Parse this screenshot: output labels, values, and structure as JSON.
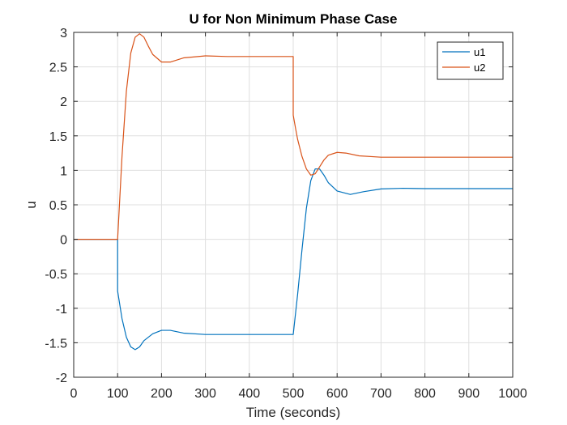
{
  "chart_data": {
    "type": "line",
    "title": "U for Non Minimum Phase Case",
    "xlabel": "Time (seconds)",
    "ylabel": "u",
    "xlim": [
      0,
      1000
    ],
    "ylim": [
      -2,
      3
    ],
    "xticks": [
      0,
      100,
      200,
      300,
      400,
      500,
      600,
      700,
      800,
      900,
      1000
    ],
    "yticks": [
      -2,
      -1.5,
      -1,
      -0.5,
      0,
      0.5,
      1,
      1.5,
      2,
      2.5,
      3
    ],
    "xtick_labels": [
      "0",
      "100",
      "200",
      "300",
      "400",
      "500",
      "600",
      "700",
      "800",
      "900",
      "1000"
    ],
    "ytick_labels": [
      "-2",
      "-1.5",
      "-1",
      "-0.5",
      "0",
      "0.5",
      "1",
      "1.5",
      "2",
      "2.5",
      "3"
    ],
    "grid": true,
    "legend_position": "top-right",
    "series": [
      {
        "name": "u1",
        "color": "#0072BD",
        "x": [
          0,
          100,
          100,
          105,
          110,
          120,
          130,
          140,
          150,
          160,
          180,
          200,
          220,
          250,
          300,
          350,
          400,
          450,
          500,
          500,
          510,
          520,
          530,
          540,
          550,
          560,
          570,
          580,
          600,
          630,
          660,
          700,
          750,
          800,
          900,
          1000
        ],
        "y": [
          0,
          0,
          -0.75,
          -0.95,
          -1.15,
          -1.42,
          -1.56,
          -1.6,
          -1.56,
          -1.47,
          -1.37,
          -1.32,
          -1.32,
          -1.36,
          -1.38,
          -1.38,
          -1.38,
          -1.38,
          -1.38,
          -1.38,
          -0.8,
          -0.15,
          0.45,
          0.85,
          1.02,
          1.02,
          0.93,
          0.82,
          0.7,
          0.65,
          0.69,
          0.73,
          0.74,
          0.735,
          0.735,
          0.735
        ]
      },
      {
        "name": "u2",
        "color": "#D95319",
        "x": [
          0,
          100,
          100,
          105,
          110,
          120,
          130,
          140,
          150,
          160,
          170,
          180,
          200,
          220,
          250,
          300,
          350,
          400,
          450,
          500,
          500,
          505,
          510,
          520,
          530,
          540,
          550,
          560,
          570,
          580,
          600,
          620,
          650,
          700,
          750,
          800,
          900,
          1000
        ],
        "y": [
          0,
          0,
          0.0,
          0.6,
          1.2,
          2.15,
          2.7,
          2.93,
          2.98,
          2.93,
          2.8,
          2.68,
          2.57,
          2.57,
          2.63,
          2.66,
          2.65,
          2.65,
          2.65,
          2.65,
          1.8,
          1.62,
          1.45,
          1.2,
          1.02,
          0.93,
          0.95,
          1.05,
          1.15,
          1.22,
          1.26,
          1.25,
          1.21,
          1.19,
          1.19,
          1.19,
          1.19,
          1.19
        ]
      }
    ]
  }
}
